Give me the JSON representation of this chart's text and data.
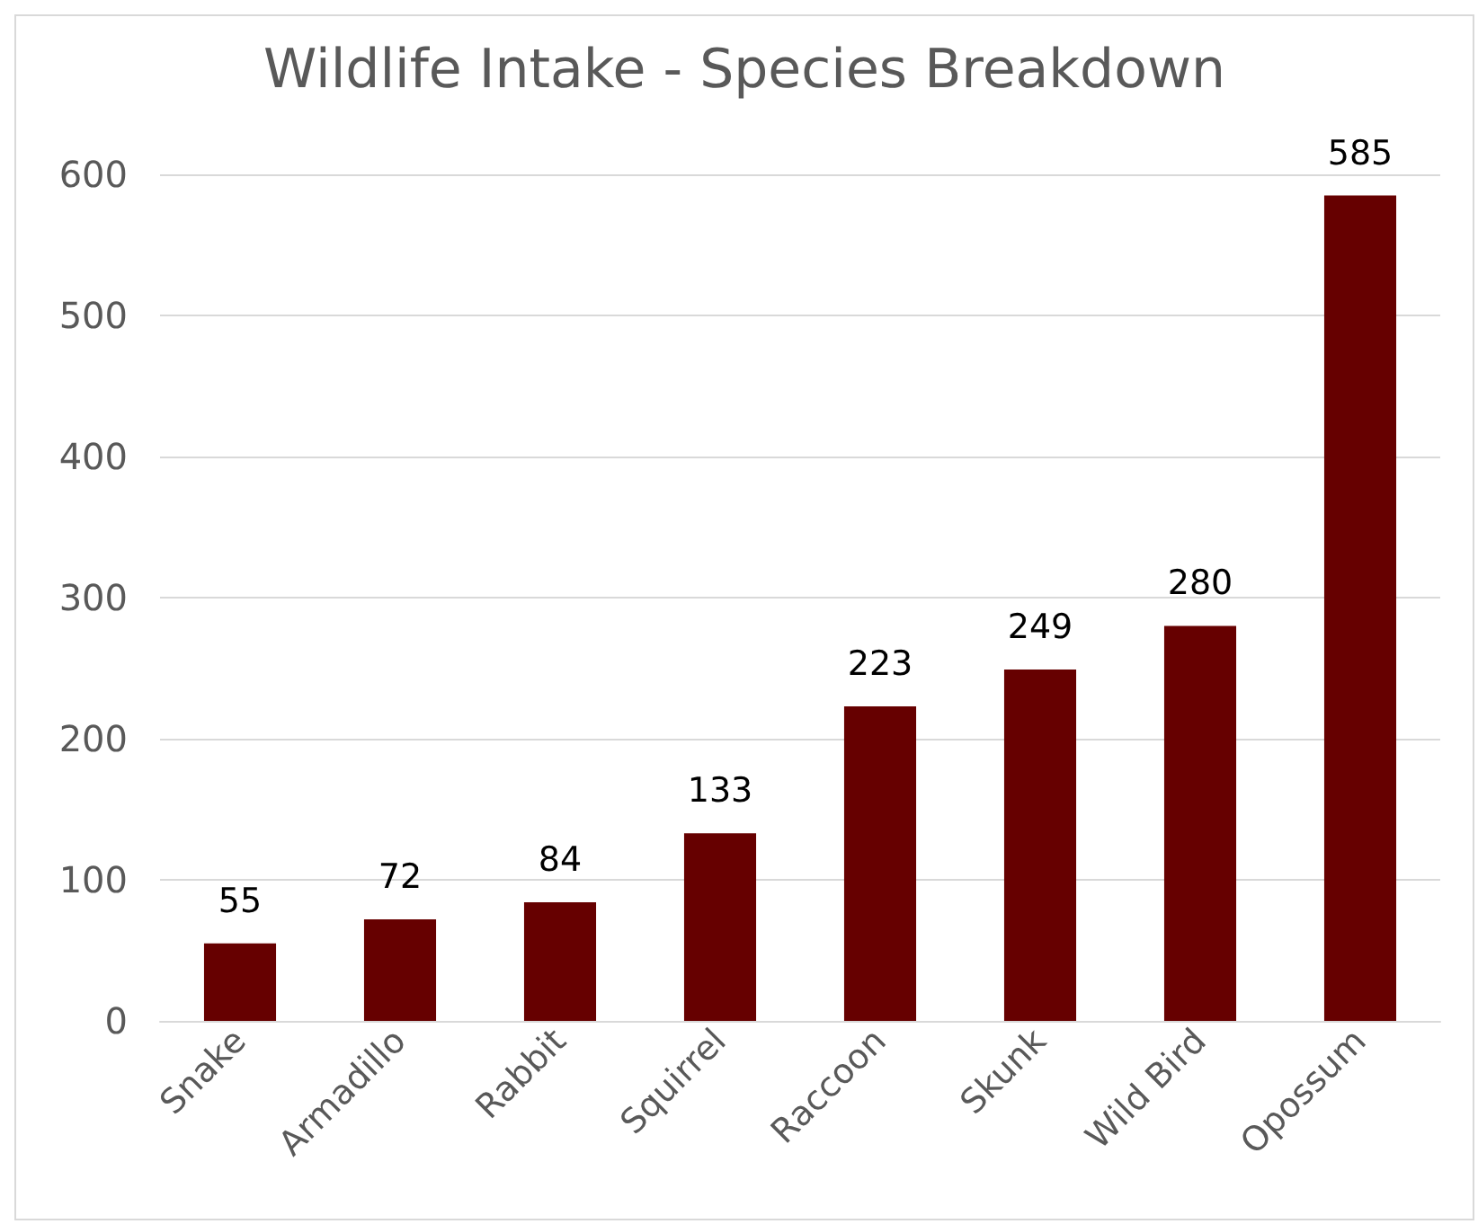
{
  "chart_data": {
    "type": "bar",
    "title": "Wildlife Intake - Species Breakdown",
    "categories": [
      "Snake",
      "Armadillo",
      "Rabbit",
      "Squirrel",
      "Raccoon",
      "Skunk",
      "Wild Bird",
      "Opossum"
    ],
    "values": [
      55,
      72,
      84,
      133,
      223,
      249,
      280,
      585
    ],
    "color": "#660000",
    "ylim": [
      0,
      600
    ],
    "yticks": [
      0,
      100,
      200,
      300,
      400,
      500,
      600
    ],
    "grid": "y",
    "data_labels": true
  }
}
